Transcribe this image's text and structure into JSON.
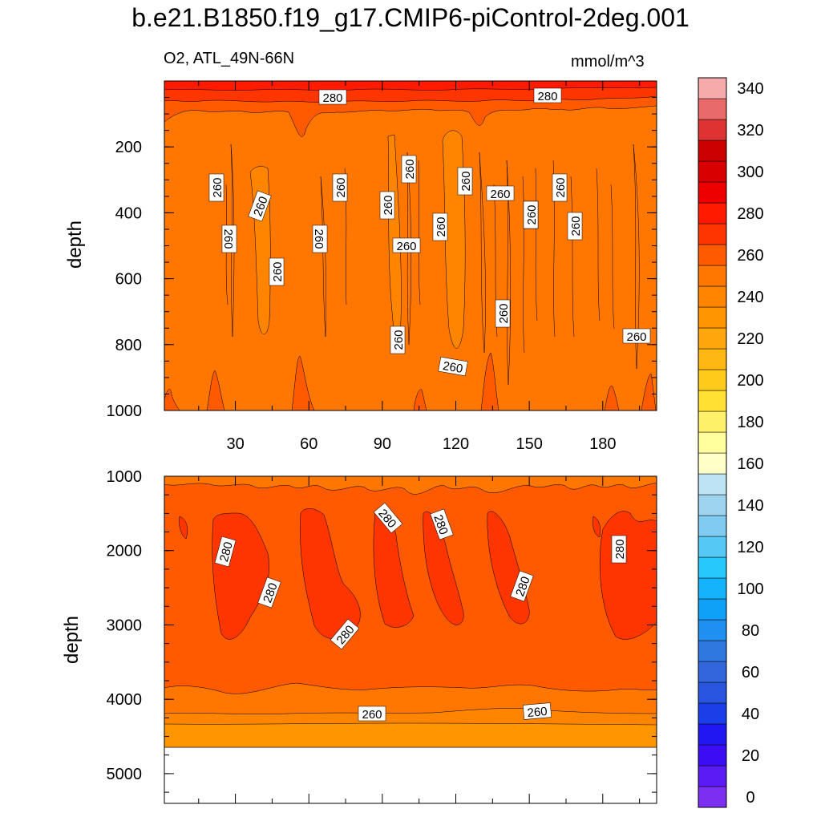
{
  "chart_data": {
    "type": "contour",
    "title": "b.e21.B1850.f19_g17.CMIP6-piControl-2deg.001",
    "subtitle_left": "O2, ATL_49N-66N",
    "units": "mmol/m^3",
    "colorbar": {
      "levels": [
        0,
        10,
        20,
        30,
        40,
        50,
        60,
        70,
        80,
        90,
        100,
        110,
        120,
        130,
        140,
        150,
        160,
        170,
        180,
        190,
        200,
        210,
        220,
        230,
        240,
        250,
        260,
        270,
        280,
        290,
        300,
        310,
        320,
        330,
        340,
        350
      ],
      "tick_labels": [
        "0",
        "20",
        "40",
        "60",
        "80",
        "100",
        "120",
        "140",
        "160",
        "180",
        "200",
        "220",
        "240",
        "260",
        "280",
        "300",
        "320",
        "340"
      ],
      "colors": [
        "#7b2ff0",
        "#5a1bf5",
        "#3a0df5",
        "#1f18f2",
        "#1a3fe8",
        "#2a55de",
        "#3366dd",
        "#2f78e0",
        "#1f8ff2",
        "#0fa0f8",
        "#13b4fc",
        "#27c8fb",
        "#55c8f5",
        "#80ccf0",
        "#9ed4ee",
        "#bde3f5",
        "#ffffc8",
        "#ffff9e",
        "#fff06a",
        "#ffe033",
        "#ffca1a",
        "#ffb812",
        "#ffa60d",
        "#ff9500",
        "#ff8500",
        "#ff7600",
        "#ff5a00",
        "#ff3500",
        "#ff1a00",
        "#ee0000",
        "#d80000",
        "#cc0000",
        "#dd3333",
        "#e86a6a",
        "#f6aaaa"
      ]
    },
    "panels": [
      {
        "name": "upper",
        "ylabel": "depth",
        "ylim": [
          0,
          1000
        ],
        "y_ticks": [
          200,
          400,
          600,
          800,
          1000
        ],
        "x_ticks": [
          30,
          60,
          90,
          120,
          150,
          180
        ],
        "xlim": [
          1,
          202
        ],
        "contour_labels": [
          "280",
          "280",
          "260",
          "260",
          "260",
          "260",
          "260",
          "260",
          "260",
          "260",
          "260",
          "260",
          "260",
          "260",
          "260",
          "260",
          "260",
          "260",
          "260",
          "260",
          "260",
          "260"
        ]
      },
      {
        "name": "lower",
        "ylabel": "depth",
        "ylim": [
          1000,
          5400
        ],
        "y_ticks": [
          1000,
          2000,
          3000,
          4000,
          5000
        ],
        "xlim": [
          1,
          202
        ],
        "contour_labels": [
          "280",
          "280",
          "280",
          "280",
          "280",
          "280",
          "280",
          "260",
          "260"
        ]
      }
    ]
  }
}
